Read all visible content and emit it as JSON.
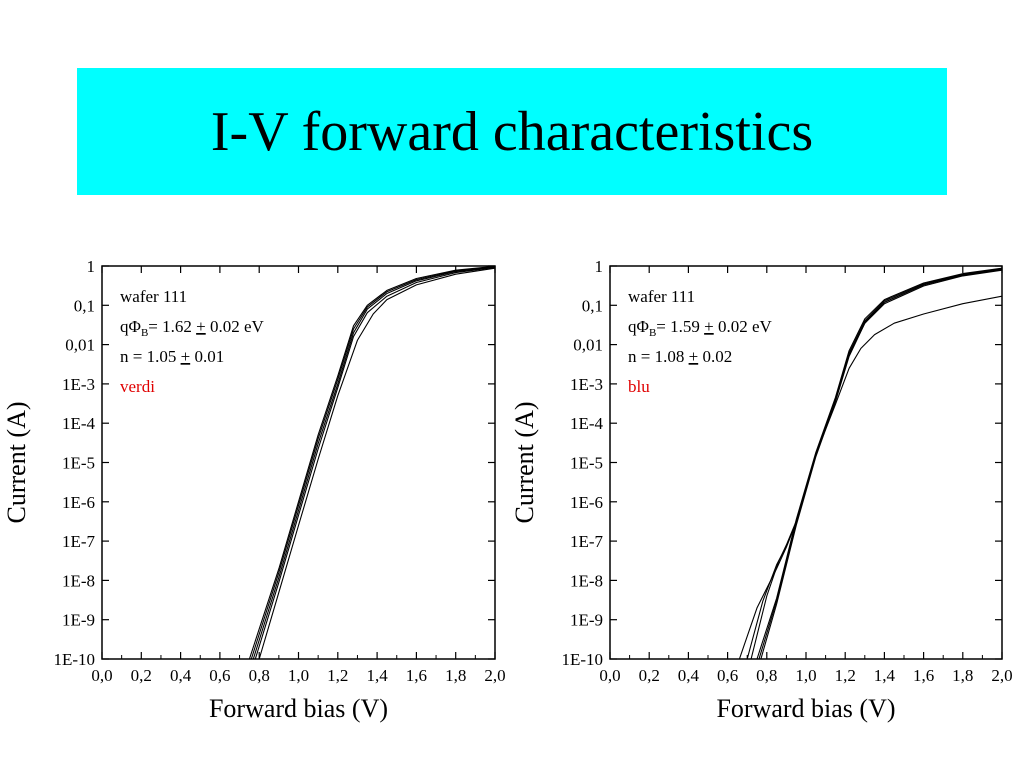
{
  "slide": {
    "title": "I-V forward characteristics",
    "title_bg_color": "#00ffff"
  },
  "chart_data": [
    {
      "type": "line",
      "xlabel": "Forward bias (V)",
      "ylabel": "Current (A)",
      "xlim": [
        0,
        2
      ],
      "ylim": [
        1e-10,
        1
      ],
      "yscale": "log",
      "x_ticks": [
        "0,0",
        "0,2",
        "0,4",
        "0,6",
        "0,8",
        "1,0",
        "1,2",
        "1,4",
        "1,6",
        "1,8",
        "2,0"
      ],
      "y_ticks": [
        "1E-10",
        "1E-9",
        "1E-8",
        "1E-7",
        "1E-6",
        "1E-5",
        "1E-4",
        "1E-3",
        "0,01",
        "0,1",
        "1"
      ],
      "annotation": {
        "line1": "wafer 111",
        "line2_prefix": "qΦ",
        "line2_sub": "B",
        "line2_mid": "= 1.62 ",
        "line2_pm": "+",
        "line2_suffix": " 0.02 eV",
        "line3_prefix": "n = 1.05 ",
        "line3_pm": "+",
        "line3_suffix": " 0.01",
        "line4": "verdi",
        "line4_color": "#e00000"
      },
      "series": [
        {
          "x": [
            0.77,
            0.9,
            1.0,
            1.1,
            1.2,
            1.28,
            1.35,
            1.45,
            1.6,
            1.8,
            2.0
          ],
          "y": [
            1e-10,
            1.2e-08,
            6e-07,
            3e-05,
            0.001,
            0.02,
            0.08,
            0.2,
            0.42,
            0.72,
            0.95
          ]
        },
        {
          "x": [
            0.76,
            0.9,
            1.0,
            1.1,
            1.2,
            1.28,
            1.35,
            1.45,
            1.6,
            1.8,
            2.0
          ],
          "y": [
            1e-10,
            1.6e-08,
            8e-07,
            4e-05,
            0.0013,
            0.025,
            0.09,
            0.22,
            0.45,
            0.75,
            0.97
          ]
        },
        {
          "x": [
            0.75,
            0.9,
            1.0,
            1.1,
            1.2,
            1.28,
            1.35,
            1.45,
            1.6,
            1.8,
            2.0
          ],
          "y": [
            1e-10,
            2e-08,
            1e-06,
            5e-05,
            0.0016,
            0.03,
            0.1,
            0.24,
            0.48,
            0.78,
            0.98
          ]
        },
        {
          "x": [
            0.78,
            0.9,
            1.0,
            1.1,
            1.2,
            1.28,
            1.35,
            1.45,
            1.6,
            1.8,
            2.0
          ],
          "y": [
            1e-10,
            9e-09,
            4.5e-07,
            2.2e-05,
            0.0008,
            0.016,
            0.065,
            0.17,
            0.38,
            0.68,
            0.92
          ]
        },
        {
          "x": [
            0.8,
            0.9,
            1.0,
            1.1,
            1.2,
            1.3,
            1.38,
            1.45,
            1.6,
            1.8,
            2.0
          ],
          "y": [
            1e-10,
            5e-09,
            2.5e-07,
            1.2e-05,
            0.0005,
            0.013,
            0.06,
            0.14,
            0.33,
            0.62,
            0.88
          ]
        }
      ]
    },
    {
      "type": "line",
      "xlabel": "Forward bias (V)",
      "ylabel": "Current (A)",
      "xlim": [
        0,
        2
      ],
      "ylim": [
        1e-10,
        1
      ],
      "yscale": "log",
      "x_ticks": [
        "0,0",
        "0,2",
        "0,4",
        "0,6",
        "0,8",
        "1,0",
        "1,2",
        "1,4",
        "1,6",
        "1,8",
        "2,0"
      ],
      "y_ticks": [
        "1E-10",
        "1E-9",
        "1E-8",
        "1E-7",
        "1E-6",
        "1E-5",
        "1E-4",
        "1E-3",
        "0,01",
        "0,1",
        "1"
      ],
      "annotation": {
        "line1": "wafer 111",
        "line2_prefix": "qΦ",
        "line2_sub": "B",
        "line2_mid": "= 1.59 ",
        "line2_pm": "+",
        "line2_suffix": " 0.02 eV",
        "line3_prefix": "n = 1.08 ",
        "line3_pm": "+",
        "line3_suffix": " 0.02",
        "line4": "blu",
        "line4_color": "#e00000"
      },
      "series": [
        {
          "x": [
            0.76,
            0.85,
            0.95,
            1.05,
            1.15,
            1.22,
            1.3,
            1.4,
            1.6,
            1.8,
            2.0
          ],
          "y": [
            1e-10,
            3e-09,
            3e-07,
            1.6e-05,
            0.0004,
            0.006,
            0.04,
            0.13,
            0.35,
            0.62,
            0.86
          ]
        },
        {
          "x": [
            0.77,
            0.85,
            0.95,
            1.05,
            1.15,
            1.22,
            1.3,
            1.4,
            1.6,
            1.8,
            2.0
          ],
          "y": [
            1e-10,
            2.5e-09,
            2.5e-07,
            1.4e-05,
            0.00035,
            0.005,
            0.035,
            0.12,
            0.33,
            0.6,
            0.84
          ]
        },
        {
          "x": [
            0.75,
            0.85,
            0.95,
            1.05,
            1.15,
            1.22,
            1.3,
            1.4,
            1.6,
            1.8,
            2.0
          ],
          "y": [
            1e-10,
            3.5e-09,
            3.5e-07,
            1.8e-05,
            0.00045,
            0.007,
            0.045,
            0.14,
            0.37,
            0.64,
            0.88
          ]
        },
        {
          "x": [
            0.66,
            0.75,
            0.85,
            0.9,
            0.95,
            1.05,
            1.15,
            1.22,
            1.3,
            1.4,
            1.6,
            1.8,
            2.0
          ],
          "y": [
            1e-10,
            2e-09,
            2e-08,
            7e-08,
            3e-07,
            1.6e-05,
            0.0004,
            0.006,
            0.038,
            0.12,
            0.33,
            0.58,
            0.8
          ]
        },
        {
          "x": [
            0.7,
            0.78,
            0.85,
            0.9,
            0.95,
            1.05,
            1.15,
            1.22,
            1.3,
            1.4,
            1.6,
            1.8,
            2.0
          ],
          "y": [
            1e-10,
            3e-09,
            2.5e-08,
            7.5e-08,
            3e-07,
            1.5e-05,
            0.00038,
            0.0055,
            0.035,
            0.11,
            0.31,
            0.56,
            0.78
          ]
        },
        {
          "x": [
            0.72,
            0.8,
            0.86,
            0.9,
            0.95,
            1.05,
            1.15,
            1.22,
            1.28,
            1.35,
            1.45,
            1.6,
            1.8,
            2.0
          ],
          "y": [
            1e-10,
            4e-09,
            3e-08,
            8e-08,
            3.2e-07,
            1.6e-05,
            0.0003,
            0.0025,
            0.008,
            0.018,
            0.035,
            0.06,
            0.11,
            0.17
          ]
        }
      ]
    }
  ]
}
